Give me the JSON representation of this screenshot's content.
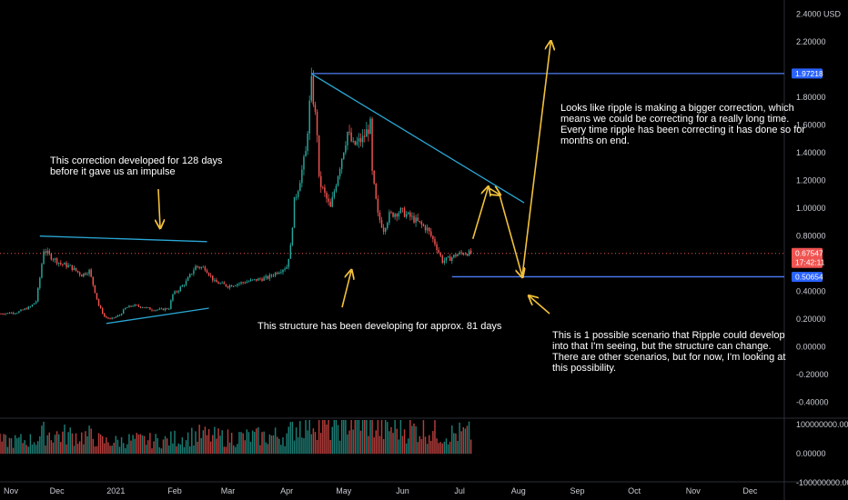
{
  "chart_data": {
    "type": "candlestick",
    "currency": "USD",
    "y_axis": {
      "ticks": [
        {
          "value": 2.4,
          "label": "2.4000"
        },
        {
          "value": 2.2,
          "label": "2.20000"
        },
        {
          "value": 1.8,
          "label": "1.80000"
        },
        {
          "value": 1.6,
          "label": "1.60000"
        },
        {
          "value": 1.4,
          "label": "1.40000"
        },
        {
          "value": 1.2,
          "label": "1.20000"
        },
        {
          "value": 1.0,
          "label": "1.00000"
        },
        {
          "value": 0.8,
          "label": "0.80000"
        },
        {
          "value": 0.4,
          "label": "0.40000"
        },
        {
          "value": 0.2,
          "label": "0.20000"
        },
        {
          "value": 0.0,
          "label": "0.00000"
        },
        {
          "value": -0.2,
          "label": "-0.20000"
        },
        {
          "value": -0.4,
          "label": "-0.40000"
        }
      ],
      "range": [
        -0.5,
        2.45
      ]
    },
    "x_axis": {
      "labels": [
        "Nov",
        "Dec",
        "2021",
        "Feb",
        "Mar",
        "Apr",
        "May",
        "Jun",
        "Jul",
        "Aug",
        "Sep",
        "Oct",
        "Nov",
        "Dec"
      ],
      "range": [
        "2020-11-01",
        "2021-12-19"
      ]
    },
    "price_tags": [
      {
        "label": "1.97218",
        "value": 1.97218,
        "color": "#2962ff"
      },
      {
        "label": "0.67547",
        "sublabel": "17:42:11",
        "value": 0.67547,
        "color": "#ef5350"
      },
      {
        "label": "0.50654",
        "value": 0.50654,
        "color": "#2962ff"
      }
    ],
    "volume_axis": {
      "ticks": [
        {
          "value": 100000000,
          "label": "100000000.00000"
        },
        {
          "value": 0,
          "label": "0.00000"
        },
        {
          "value": -100000000,
          "label": "-100000000.00000"
        }
      ]
    },
    "close_price_path": [
      [
        "2020-11-01",
        0.24
      ],
      [
        "2020-11-10",
        0.25
      ],
      [
        "2020-11-17",
        0.29
      ],
      [
        "2020-11-20",
        0.33
      ],
      [
        "2020-11-22",
        0.5
      ],
      [
        "2020-11-24",
        0.7
      ],
      [
        "2020-11-28",
        0.65
      ],
      [
        "2020-12-03",
        0.6
      ],
      [
        "2020-12-08",
        0.58
      ],
      [
        "2020-12-14",
        0.52
      ],
      [
        "2020-12-18",
        0.55
      ],
      [
        "2020-12-20",
        0.45
      ],
      [
        "2020-12-23",
        0.3
      ],
      [
        "2020-12-26",
        0.22
      ],
      [
        "2020-12-29",
        0.2
      ],
      [
        "2021-01-03",
        0.23
      ],
      [
        "2021-01-06",
        0.28
      ],
      [
        "2021-01-10",
        0.3
      ],
      [
        "2021-01-15",
        0.29
      ],
      [
        "2021-01-20",
        0.27
      ],
      [
        "2021-01-25",
        0.27
      ],
      [
        "2021-01-29",
        0.28
      ],
      [
        "2021-01-31",
        0.38
      ],
      [
        "2021-02-02",
        0.4
      ],
      [
        "2021-02-07",
        0.47
      ],
      [
        "2021-02-12",
        0.58
      ],
      [
        "2021-02-17",
        0.57
      ],
      [
        "2021-02-22",
        0.47
      ],
      [
        "2021-03-01",
        0.44
      ],
      [
        "2021-03-07",
        0.46
      ],
      [
        "2021-03-14",
        0.48
      ],
      [
        "2021-03-22",
        0.5
      ],
      [
        "2021-03-28",
        0.55
      ],
      [
        "2021-04-01",
        0.58
      ],
      [
        "2021-04-03",
        0.72
      ],
      [
        "2021-04-05",
        1.05
      ],
      [
        "2021-04-07",
        1.15
      ],
      [
        "2021-04-11",
        1.4
      ],
      [
        "2021-04-13",
        1.75
      ],
      [
        "2021-04-14",
        1.9
      ],
      [
        "2021-04-17",
        1.55
      ],
      [
        "2021-04-18",
        1.2
      ],
      [
        "2021-04-21",
        1.1
      ],
      [
        "2021-04-24",
        1.0
      ],
      [
        "2021-04-28",
        1.25
      ],
      [
        "2021-05-03",
        1.55
      ],
      [
        "2021-05-06",
        1.45
      ],
      [
        "2021-05-11",
        1.5
      ],
      [
        "2021-05-15",
        1.6
      ],
      [
        "2021-05-16",
        1.25
      ],
      [
        "2021-05-19",
        0.95
      ],
      [
        "2021-05-22",
        0.85
      ],
      [
        "2021-05-25",
        0.95
      ],
      [
        "2021-05-31",
        0.98
      ],
      [
        "2021-06-06",
        0.93
      ],
      [
        "2021-06-11",
        0.88
      ],
      [
        "2021-06-14",
        0.85
      ],
      [
        "2021-06-18",
        0.75
      ],
      [
        "2021-06-22",
        0.62
      ],
      [
        "2021-06-26",
        0.64
      ],
      [
        "2021-06-30",
        0.67
      ],
      [
        "2021-07-04",
        0.68
      ],
      [
        "2021-07-07",
        0.6754
      ]
    ],
    "trendlines": [
      {
        "color": "#4d7cf5",
        "from": [
          "2021-04-14",
          1.97218
        ],
        "to": [
          "2021-12-19",
          1.97218
        ]
      },
      {
        "color": "#4d7cf5",
        "from": [
          "2021-06-27",
          0.50654
        ],
        "to": [
          "2021-12-19",
          0.50654
        ]
      },
      {
        "color": "#2aa7d5",
        "from": [
          "2021-04-14",
          1.97
        ],
        "to": [
          "2021-08-04",
          1.04
        ]
      },
      {
        "color": "#2aa7d5",
        "from": [
          "2020-11-22",
          0.8
        ],
        "to": [
          "2021-02-18",
          0.76
        ]
      },
      {
        "color": "#2aa7d5",
        "from": [
          "2020-12-27",
          0.17
        ],
        "to": [
          "2021-02-19",
          0.28
        ]
      }
    ],
    "projection": {
      "color": "#f2c13a",
      "points": [
        [
          "2021-07-08",
          0.78
        ],
        [
          "2021-07-16",
          1.15
        ],
        [
          "2021-07-22",
          1.1
        ],
        [
          "2021-08-03",
          0.51
        ],
        [
          "2021-08-18",
          2.2
        ]
      ]
    },
    "annotations": [
      {
        "lines": [
          "This correction developed for 128 days",
          "before it gave us an impulse"
        ]
      },
      {
        "lines": [
          "This structure has been developing for approx. 81 days"
        ]
      },
      {
        "lines": [
          "Looks like ripple is making a bigger correction, which",
          "means we could be correcting for a really long time.",
          "Every time ripple has been correcting it has done so for",
          "months on end."
        ]
      },
      {
        "lines": [
          "This is 1 possible scenario that Ripple could develop",
          "into that I'm seeing, but the structure can change.",
          "There are other scenarios, but for now, I'm looking at",
          "this possibility."
        ]
      }
    ],
    "colors": {
      "up": "#26a69a",
      "down": "#ef5350",
      "background": "#000000",
      "axis_text": "#c9ccd3"
    }
  }
}
